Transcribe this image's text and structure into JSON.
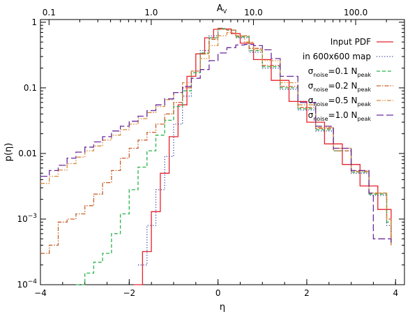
{
  "chart_data": {
    "type": "line",
    "title": "",
    "xlabel": "η",
    "ylabel": "p(η)",
    "top_axis_label": "A_V",
    "xlim": [
      -4,
      4.2
    ],
    "ylim": [
      0.0001,
      1.1
    ],
    "y_scale": "log",
    "x_ticks": [
      -4,
      -2,
      0,
      2,
      4
    ],
    "x_tick_labels": [
      "−4",
      "−2",
      "0",
      "2",
      "4"
    ],
    "y_ticks": [
      0.0001,
      0.001,
      0.01,
      0.1,
      1
    ],
    "y_tick_labels": [
      {
        "base": "10",
        "exp": "−4"
      },
      {
        "base": "10",
        "exp": "−3"
      },
      {
        "base": "0.01",
        "exp": ""
      },
      {
        "base": "0.1",
        "exp": ""
      },
      {
        "base": "1",
        "exp": ""
      }
    ],
    "top_ticks_av": [
      0.1,
      1.0,
      10.0,
      100.0
    ],
    "top_tick_labels": [
      "0.1",
      "1.0",
      "10.0",
      "100.0"
    ],
    "av_ref": 4.5,
    "grid": false,
    "legend_position": "top-right",
    "series": [
      {
        "name": "Input PDF",
        "color": "#e8202a",
        "style": "solid",
        "x": [
          -1.9,
          -1.7,
          -1.5,
          -1.3,
          -1.1,
          -0.9,
          -0.7,
          -0.5,
          -0.3,
          -0.1,
          0.0,
          0.1,
          0.3,
          0.5,
          0.8,
          1.2,
          1.6,
          2.0,
          2.4,
          2.8,
          3.2,
          3.6,
          3.9
        ],
        "y": [
          0.0001,
          0.00032,
          0.0013,
          0.005,
          0.018,
          0.055,
          0.15,
          0.33,
          0.58,
          0.78,
          0.81,
          0.79,
          0.67,
          0.48,
          0.27,
          0.13,
          0.062,
          0.03,
          0.014,
          0.0068,
          0.0032,
          0.0014,
          0.0005
        ]
      },
      {
        "name": "in 600x600 map",
        "color": "#3040a0",
        "style": "dotted",
        "x": [
          -1.8,
          -1.6,
          -1.4,
          -1.2,
          -1.0,
          -0.8,
          -0.6,
          -0.4,
          -0.2,
          0.0,
          0.2,
          0.4,
          0.7,
          1.0,
          1.4,
          1.8,
          2.2,
          2.6,
          3.0,
          3.4,
          3.8,
          3.9
        ],
        "y": [
          0.0002,
          0.0008,
          0.0028,
          0.009,
          0.028,
          0.075,
          0.18,
          0.37,
          0.62,
          0.8,
          0.76,
          0.58,
          0.35,
          0.2,
          0.095,
          0.046,
          0.022,
          0.011,
          0.005,
          0.0023,
          0.0008,
          0.0004
        ]
      },
      {
        "name": "σnoise=0.1 Npeak",
        "color": "#29b34a",
        "style": "dashed",
        "x": [
          -3.2,
          -3.0,
          -2.8,
          -2.6,
          -2.4,
          -2.2,
          -2.0,
          -1.8,
          -1.6,
          -1.4,
          -1.2,
          -1.0,
          -0.8,
          -0.6,
          -0.4,
          -0.2,
          0.0,
          0.2,
          0.4,
          0.7,
          1.0,
          1.4,
          1.8,
          2.2,
          2.6,
          3.0,
          3.4,
          3.8,
          3.9
        ],
        "y": [
          0.0001,
          0.00015,
          0.00022,
          0.0003,
          0.0006,
          0.0012,
          0.0028,
          0.0062,
          0.011,
          0.019,
          0.032,
          0.052,
          0.09,
          0.17,
          0.34,
          0.58,
          0.8,
          0.76,
          0.6,
          0.37,
          0.21,
          0.1,
          0.048,
          0.023,
          0.011,
          0.0052,
          0.0024,
          0.0009,
          0.0004
        ]
      },
      {
        "name": "σnoise=0.2 Npeak",
        "color": "#c8602a",
        "style": "dash-dot",
        "x": [
          -4.0,
          -3.8,
          -3.6,
          -3.4,
          -3.2,
          -3.0,
          -2.8,
          -2.6,
          -2.4,
          -2.2,
          -2.0,
          -1.8,
          -1.6,
          -1.4,
          -1.2,
          -1.0,
          -0.8,
          -0.6,
          -0.4,
          -0.2,
          0.0,
          0.2,
          0.4,
          0.7,
          1.0,
          1.4,
          1.8,
          2.2,
          2.6,
          3.0,
          3.4,
          3.8,
          3.9
        ],
        "y": [
          0.0003,
          0.0004,
          0.0009,
          0.001,
          0.0012,
          0.0016,
          0.0024,
          0.0036,
          0.0055,
          0.0085,
          0.012,
          0.016,
          0.021,
          0.028,
          0.04,
          0.06,
          0.1,
          0.18,
          0.33,
          0.55,
          0.78,
          0.76,
          0.62,
          0.4,
          0.22,
          0.105,
          0.05,
          0.024,
          0.011,
          0.0053,
          0.0025,
          0.001,
          0.0004
        ]
      },
      {
        "name": "σnoise=0.5 Npeak",
        "color": "#d98a3a",
        "style": "dash-dot-dot",
        "x": [
          -4.0,
          -3.8,
          -3.6,
          -3.4,
          -3.2,
          -3.0,
          -2.8,
          -2.6,
          -2.4,
          -2.2,
          -2.0,
          -1.8,
          -1.6,
          -1.4,
          -1.2,
          -1.0,
          -0.8,
          -0.6,
          -0.4,
          -0.2,
          0.0,
          0.2,
          0.4,
          0.6,
          0.8,
          1.0,
          1.4,
          1.8,
          2.2,
          2.6,
          3.0,
          3.4,
          3.8,
          3.9
        ],
        "y": [
          0.0035,
          0.0045,
          0.0056,
          0.007,
          0.0088,
          0.011,
          0.013,
          0.016,
          0.019,
          0.023,
          0.028,
          0.034,
          0.042,
          0.052,
          0.066,
          0.085,
          0.12,
          0.18,
          0.28,
          0.44,
          0.62,
          0.7,
          0.62,
          0.5,
          0.38,
          0.26,
          0.12,
          0.055,
          0.025,
          0.012,
          0.0055,
          0.0025,
          0.001,
          0.0004
        ]
      },
      {
        "name": "σnoise=1.0 Npeak",
        "color": "#6a2a9a",
        "style": "long-dash",
        "x": [
          -4.0,
          -3.8,
          -3.6,
          -3.4,
          -3.2,
          -3.0,
          -2.8,
          -2.6,
          -2.4,
          -2.2,
          -2.0,
          -1.8,
          -1.6,
          -1.4,
          -1.2,
          -1.0,
          -0.8,
          -0.6,
          -0.4,
          -0.2,
          0.0,
          0.2,
          0.4,
          0.6,
          0.8,
          1.0,
          1.2,
          1.4,
          1.8,
          2.2,
          2.6,
          3.0,
          3.4,
          3.5,
          3.9
        ],
        "y": [
          0.0045,
          0.0055,
          0.0066,
          0.0085,
          0.0105,
          0.0125,
          0.015,
          0.018,
          0.022,
          0.026,
          0.031,
          0.037,
          0.045,
          0.055,
          0.068,
          0.085,
          0.105,
          0.14,
          0.19,
          0.26,
          0.34,
          0.41,
          0.45,
          0.46,
          0.44,
          0.38,
          0.28,
          0.15,
          0.06,
          0.026,
          0.012,
          0.0055,
          0.0025,
          0.0005,
          0.0004
        ]
      }
    ]
  }
}
